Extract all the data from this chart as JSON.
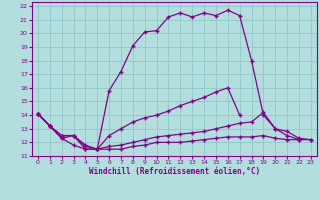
{
  "xlabel": "Windchill (Refroidissement éolien,°C)",
  "xlim": [
    -0.5,
    23.5
  ],
  "ylim": [
    11,
    22.3
  ],
  "xticks": [
    0,
    1,
    2,
    3,
    4,
    5,
    6,
    7,
    8,
    9,
    10,
    11,
    12,
    13,
    14,
    15,
    16,
    17,
    18,
    19,
    20,
    21,
    22,
    23
  ],
  "yticks": [
    11,
    12,
    13,
    14,
    15,
    16,
    17,
    18,
    19,
    20,
    21,
    22
  ],
  "background_color": "#b2dede",
  "grid_color": "#8fc8c8",
  "line_color": "#880088",
  "line1_x": [
    0,
    1,
    2,
    3,
    4,
    5,
    6,
    7,
    8,
    9,
    10,
    11,
    12,
    13,
    14,
    15,
    16,
    17,
    18,
    19,
    20,
    21,
    22,
    23
  ],
  "line1_y": [
    14.1,
    13.2,
    12.5,
    12.5,
    11.8,
    11.5,
    15.8,
    17.2,
    19.1,
    20.1,
    20.2,
    21.2,
    21.5,
    21.2,
    21.5,
    21.3,
    21.7,
    21.3,
    18.0,
    14.0,
    13.0,
    12.5,
    12.2,
    null
  ],
  "line2_x": [
    0,
    1,
    2,
    3,
    4,
    5,
    6,
    7,
    8,
    9,
    10,
    11,
    12,
    13,
    14,
    15,
    16,
    17,
    18,
    19,
    20,
    21,
    22,
    23
  ],
  "line2_y": [
    14.1,
    13.2,
    12.5,
    12.5,
    11.5,
    11.5,
    12.5,
    13.0,
    13.5,
    13.8,
    14.0,
    14.3,
    14.7,
    15.0,
    15.3,
    15.7,
    16.0,
    14.0,
    null,
    null,
    null,
    null,
    null,
    null
  ],
  "line3_x": [
    0,
    1,
    2,
    3,
    4,
    5,
    6,
    7,
    8,
    9,
    10,
    11,
    12,
    13,
    14,
    15,
    16,
    17,
    18,
    19,
    20,
    21,
    22,
    23
  ],
  "line3_y": [
    14.1,
    13.2,
    12.3,
    11.8,
    11.5,
    11.5,
    11.7,
    11.8,
    12.0,
    12.2,
    12.4,
    12.5,
    12.6,
    12.7,
    12.8,
    13.0,
    13.2,
    13.4,
    13.5,
    14.2,
    13.0,
    12.8,
    12.3,
    12.2
  ],
  "line4_x": [
    0,
    1,
    2,
    3,
    4,
    5,
    6,
    7,
    8,
    9,
    10,
    11,
    12,
    13,
    14,
    15,
    16,
    17,
    18,
    19,
    20,
    21,
    22,
    23
  ],
  "line4_y": [
    14.1,
    13.2,
    12.3,
    12.5,
    11.7,
    11.5,
    11.5,
    11.5,
    11.7,
    11.8,
    12.0,
    12.0,
    12.0,
    12.1,
    12.2,
    12.3,
    12.4,
    12.4,
    12.4,
    12.5,
    12.3,
    12.2,
    12.2,
    12.2
  ]
}
